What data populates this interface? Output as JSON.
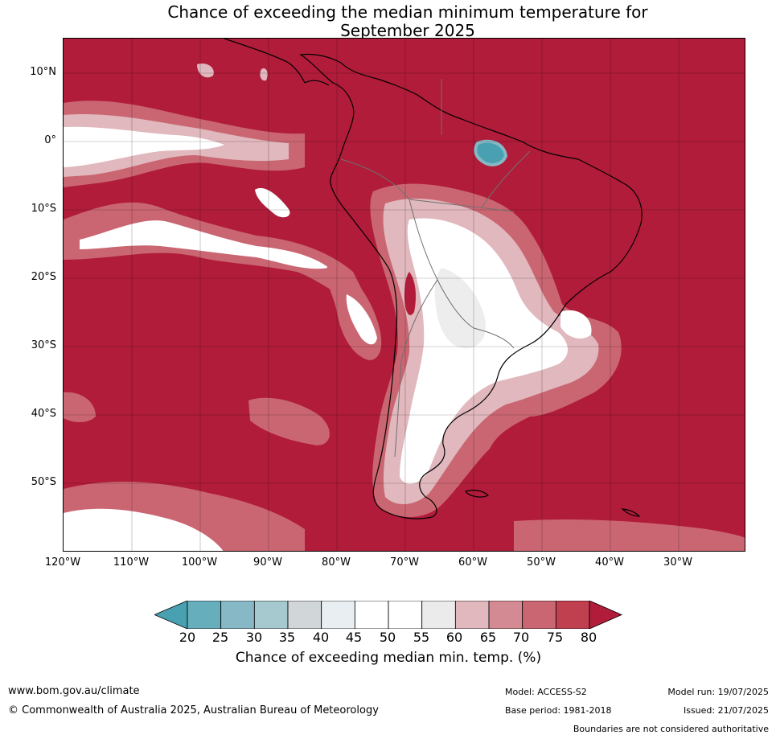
{
  "title_line1": "Chance of exceeding the median minimum temperature for",
  "title_line2": "September 2025",
  "map": {
    "lat_labels": [
      "10°N",
      "0°",
      "10°S",
      "20°S",
      "30°S",
      "40°S",
      "50°S"
    ],
    "lon_labels": [
      "120°W",
      "110°W",
      "100°W",
      "90°W",
      "80°W",
      "70°W",
      "60°W",
      "50°W",
      "40°W",
      "30°W"
    ],
    "colors": {
      "ocean_high": "#b01c3a",
      "level_75_80": "#c0404f",
      "level_70_75": "#ca6672",
      "level_65_70": "#d48a92",
      "level_60_65": "#e0b8bd",
      "level_55_60": "#ededed",
      "near_neutral": "#ffffff",
      "low_teal": "#48a0b0"
    }
  },
  "colorbar": {
    "ticks": [
      "20",
      "25",
      "30",
      "35",
      "40",
      "45",
      "50",
      "55",
      "60",
      "65",
      "70",
      "75",
      "80"
    ],
    "label": "Chance of exceeding median min. temp. (%)",
    "colors": [
      "#48a0b0",
      "#67aebd",
      "#86b8c5",
      "#a6c8cf",
      "#d1d6d8",
      "#e8eef1",
      "#ffffff",
      "#ffffff",
      "#ebebeb",
      "#e0b8bd",
      "#d48a92",
      "#ca6672",
      "#c0404f",
      "#b01c3a"
    ]
  },
  "footer": {
    "website": "www.bom.gov.au/climate",
    "copyright": "© Commonwealth of Australia 2025, Australian Bureau of Meteorology",
    "model": "Model: ACCESS-S2",
    "base_period": "Base period: 1981-2018",
    "model_run": "Model run: 19/07/2025",
    "issued": "Issued: 21/07/2025",
    "disclaimer": "Boundaries are not considered authoritative"
  }
}
